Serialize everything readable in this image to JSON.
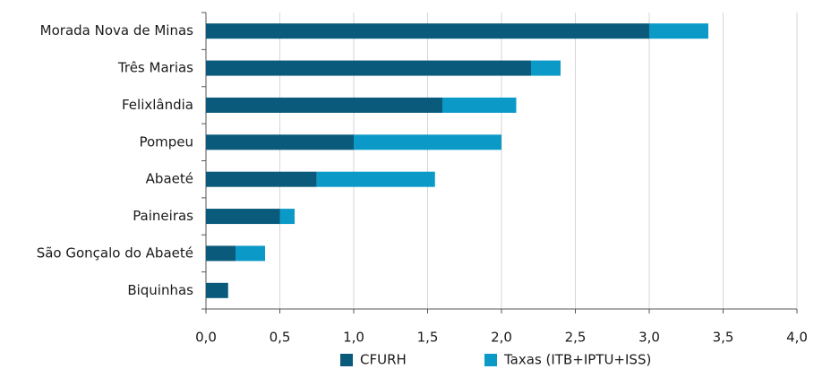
{
  "chart_data": {
    "type": "stacked-barh",
    "categories": [
      "Morada  Nova de Minas",
      "Três Marias",
      "Felixlândia",
      "Pompeu",
      "Abaeté",
      "Paineiras",
      "São Gonçalo do Abaeté",
      "Biquinhas"
    ],
    "series": [
      {
        "name": "CFURH",
        "color": "#0a5a7c",
        "values": [
          3.0,
          2.2,
          1.6,
          1.0,
          0.75,
          0.5,
          0.2,
          0.15
        ]
      },
      {
        "name": "Taxas (ITB+IPTU+ISS)",
        "color": "#0b9ac7",
        "values": [
          0.4,
          0.2,
          0.5,
          1.0,
          0.8,
          0.1,
          0.2,
          0
        ]
      }
    ],
    "xlim": [
      0,
      4
    ],
    "xticks": [
      {
        "value": 0,
        "label": "0,0"
      },
      {
        "value": 0.5,
        "label": "0,5"
      },
      {
        "value": 1,
        "label": "1,0"
      },
      {
        "value": 1.5,
        "label": "1,5"
      },
      {
        "value": 2,
        "label": "2,0"
      },
      {
        "value": 2.5,
        "label": "2,5"
      },
      {
        "value": 3,
        "label": "3,0"
      },
      {
        "value": 3.5,
        "label": "3,5"
      },
      {
        "value": 4,
        "label": "4,0"
      }
    ],
    "grid": true,
    "legend": "bottom"
  }
}
